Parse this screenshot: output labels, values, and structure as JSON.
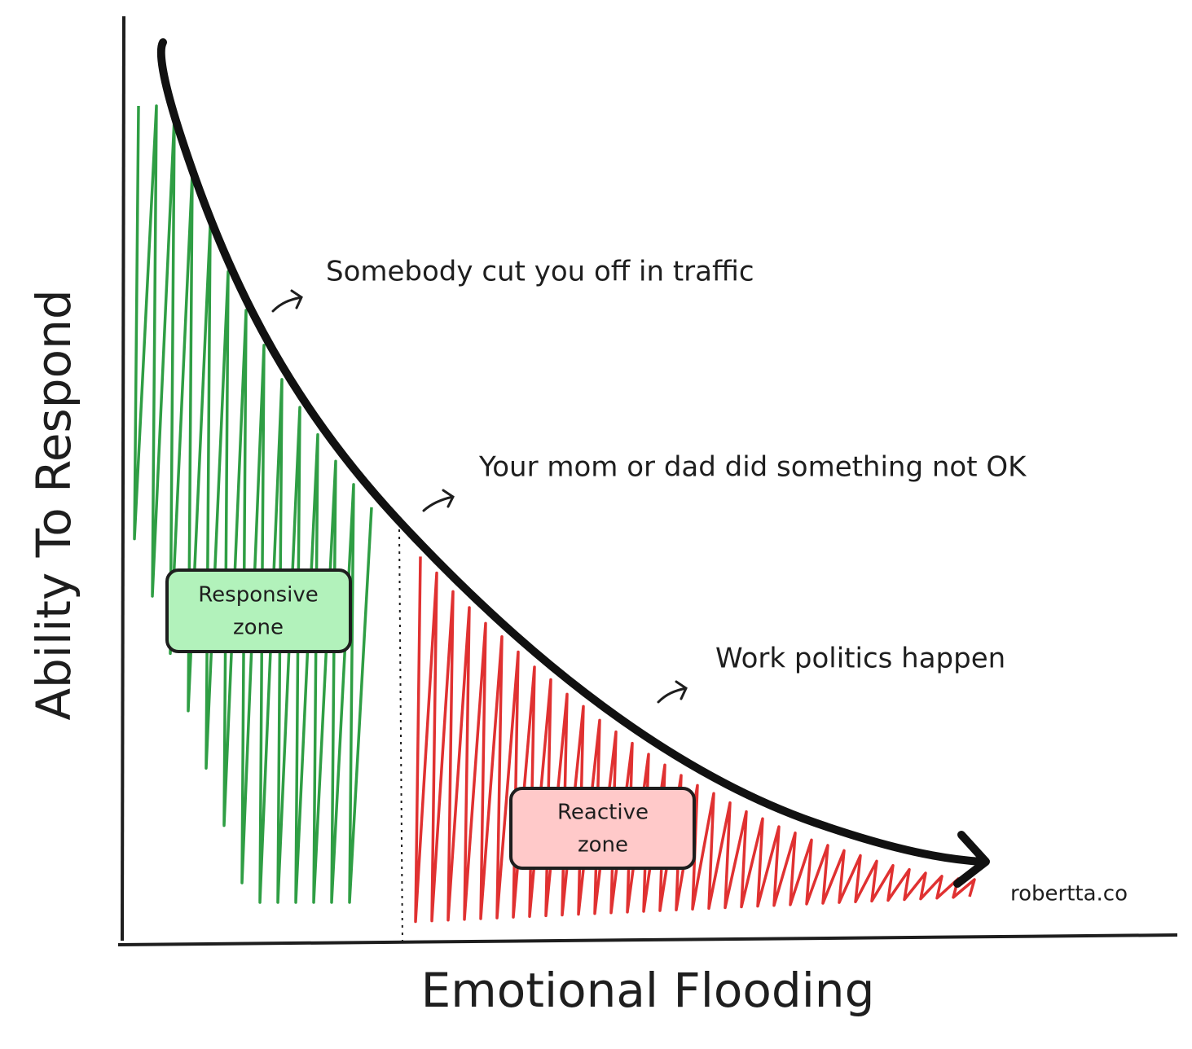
{
  "axes": {
    "x_label": "Emotional Flooding",
    "y_label": "Ability To Respond"
  },
  "annotations": [
    "Somebody cut you off in traffic",
    "Your mom or dad did something not OK",
    "Work politics happen"
  ],
  "zones": [
    {
      "lines": [
        "Responsive",
        "zone"
      ]
    },
    {
      "lines": [
        "Reactive",
        "zone"
      ]
    }
  ],
  "credit": "robertta.co"
}
